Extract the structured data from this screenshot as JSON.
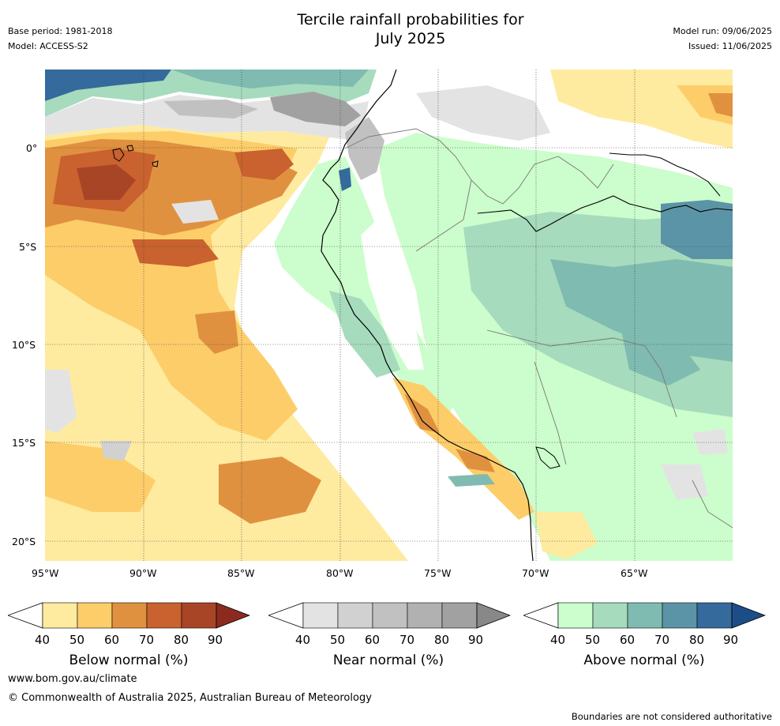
{
  "header": {
    "title_line1": "Tercile rainfall probabilities for",
    "title_line2": "July 2025",
    "base_period": "Base period: 1981-2018",
    "model": "Model: ACCESS-S2",
    "model_run": "Model run: 09/06/2025",
    "issued": "Issued: 11/06/2025"
  },
  "axes": {
    "lat_labels": [
      "0°",
      "5°S",
      "10°S",
      "15°S",
      "20°S"
    ],
    "lon_labels": [
      "95°W",
      "90°W",
      "85°W",
      "80°W",
      "75°W",
      "70°W",
      "65°W"
    ]
  },
  "colorbars": [
    {
      "title": "Below normal (%)",
      "ticks": [
        "40",
        "50",
        "60",
        "70",
        "80",
        "90"
      ],
      "colors": [
        "#ffffff",
        "#feeba0",
        "#fdcd6a",
        "#e0913f",
        "#c9622e",
        "#a84527",
        "#8b2a1f"
      ]
    },
    {
      "title": "Near normal (%)",
      "ticks": [
        "40",
        "50",
        "60",
        "70",
        "80",
        "90"
      ],
      "colors": [
        "#ffffff",
        "#e3e3e3",
        "#d1d1d1",
        "#c1c1c1",
        "#b1b1b1",
        "#a1a1a1",
        "#888888"
      ]
    },
    {
      "title": "Above normal (%)",
      "ticks": [
        "40",
        "50",
        "60",
        "70",
        "80",
        "90"
      ],
      "colors": [
        "#ffffff",
        "#ccfdcc",
        "#a6dbbd",
        "#7fbbb0",
        "#5b94a6",
        "#346a9c",
        "#1c4d86"
      ]
    }
  ],
  "footer": {
    "url": "www.bom.gov.au/climate",
    "copyright": "© Commonwealth of Australia 2025, Australian Bureau of Meteorology",
    "disclaimer": "Boundaries are not considered authoritative"
  }
}
